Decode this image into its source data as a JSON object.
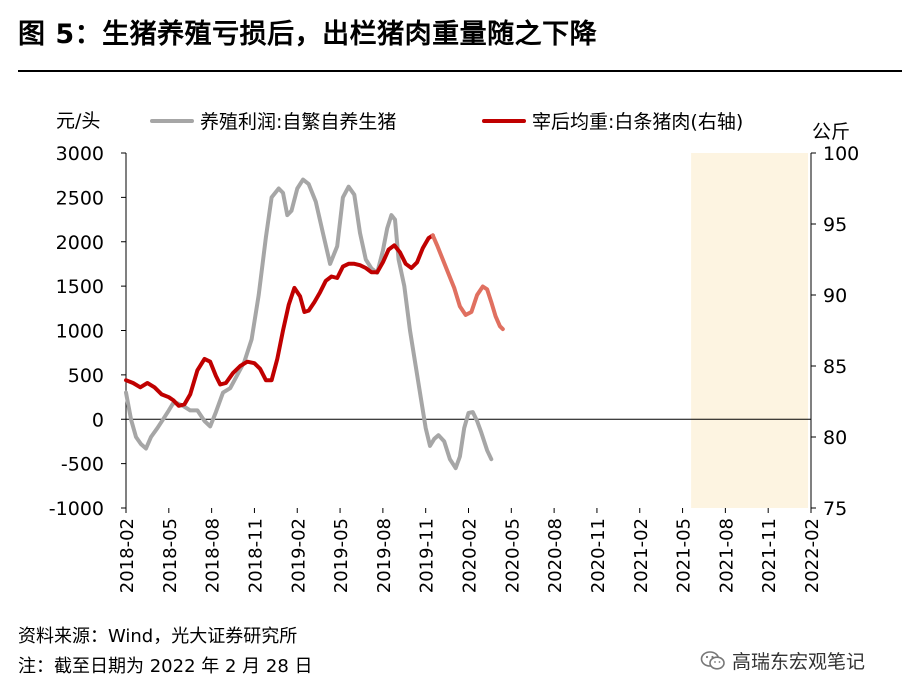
{
  "title": "图 5：生猪养殖亏损后，出栏猪肉重量随之下降",
  "source": "资料来源：Wind，光大证券研究所",
  "note": "注：截至日期为 2022 年 2 月 28 日",
  "watermark": "高瑞东宏观笔记",
  "colors": {
    "profit": "#a6a6a6",
    "weight": "#c00000",
    "weight_recent": "#e07060",
    "shade": "#fdf4e1"
  },
  "chart_data": {
    "type": "line",
    "left_unit": "元/头",
    "right_unit": "公斤",
    "left_ylim": [
      -1000,
      3000
    ],
    "left_ticks": [
      3000,
      2500,
      2000,
      1500,
      1000,
      500,
      0,
      -500,
      -1000
    ],
    "right_ylim": [
      75,
      100
    ],
    "right_ticks": [
      100,
      95,
      90,
      85,
      80,
      75
    ],
    "x_ticks": [
      "2018-02",
      "2018-05",
      "2018-08",
      "2018-11",
      "2019-02",
      "2019-05",
      "2019-08",
      "2019-11",
      "2020-02",
      "2020-05",
      "2020-08",
      "2020-11",
      "2021-02",
      "2021-05",
      "2021-08",
      "2021-11",
      "2022-02"
    ],
    "shaded_from": "2021-06",
    "shaded_to": "2022-02",
    "series": [
      {
        "name": "养殖利润:自繁自养生猪",
        "axis": "left",
        "points": [
          [
            0,
            300
          ],
          [
            0.35,
            0
          ],
          [
            0.7,
            -200
          ],
          [
            1.05,
            -280
          ],
          [
            1.4,
            -330
          ],
          [
            1.75,
            -200
          ],
          [
            2.2,
            -100
          ],
          [
            2.6,
            0
          ],
          [
            3.0,
            100
          ],
          [
            3.3,
            180
          ],
          [
            3.6,
            180
          ],
          [
            4.0,
            150
          ],
          [
            4.5,
            100
          ],
          [
            5.0,
            100
          ],
          [
            5.5,
            -20
          ],
          [
            5.9,
            -80
          ],
          [
            6.3,
            80
          ],
          [
            6.8,
            300
          ],
          [
            7.3,
            350
          ],
          [
            7.8,
            500
          ],
          [
            8.3,
            650
          ],
          [
            8.8,
            900
          ],
          [
            9.3,
            1400
          ],
          [
            9.8,
            2050
          ],
          [
            10.2,
            2500
          ],
          [
            10.7,
            2600
          ],
          [
            11.0,
            2550
          ],
          [
            11.3,
            2300
          ],
          [
            11.6,
            2350
          ],
          [
            12.0,
            2600
          ],
          [
            12.4,
            2700
          ],
          [
            12.8,
            2650
          ],
          [
            13.3,
            2450
          ],
          [
            13.8,
            2100
          ],
          [
            14.3,
            1750
          ],
          [
            14.8,
            1950
          ],
          [
            15.2,
            2500
          ],
          [
            15.6,
            2620
          ],
          [
            16.0,
            2530
          ],
          [
            16.4,
            2100
          ],
          [
            16.8,
            1800
          ],
          [
            17.2,
            1700
          ],
          [
            17.6,
            1650
          ],
          [
            18.0,
            1900
          ],
          [
            18.3,
            2150
          ],
          [
            18.6,
            2300
          ],
          [
            18.85,
            2250
          ],
          [
            19.1,
            1800
          ],
          [
            19.5,
            1500
          ],
          [
            19.9,
            1000
          ],
          [
            20.3,
            600
          ],
          [
            20.7,
            200
          ],
          [
            21.0,
            -100
          ],
          [
            21.3,
            -300
          ],
          [
            21.6,
            -220
          ],
          [
            21.9,
            -180
          ],
          [
            22.3,
            -250
          ],
          [
            22.7,
            -450
          ],
          [
            23.1,
            -550
          ],
          [
            23.4,
            -420
          ],
          [
            23.7,
            -100
          ],
          [
            24.0,
            70
          ],
          [
            24.3,
            80
          ],
          [
            24.6,
            -20
          ],
          [
            24.9,
            -150
          ],
          [
            25.3,
            -350
          ],
          [
            25.6,
            -450
          ]
        ]
      },
      {
        "name": "宰后均重:白条猪肉(右轴)",
        "axis": "right",
        "points": [
          [
            0,
            84.0
          ],
          [
            0.5,
            83.8
          ],
          [
            1.0,
            83.5
          ],
          [
            1.5,
            83.8
          ],
          [
            2.0,
            83.5
          ],
          [
            2.5,
            83.0
          ],
          [
            3.0,
            82.8
          ],
          [
            3.3,
            82.6
          ],
          [
            3.7,
            82.2
          ],
          [
            4.1,
            82.3
          ],
          [
            4.5,
            83.0
          ],
          [
            5.0,
            84.7
          ],
          [
            5.5,
            85.5
          ],
          [
            5.9,
            85.3
          ],
          [
            6.3,
            84.3
          ],
          [
            6.6,
            83.7
          ],
          [
            7.0,
            83.8
          ],
          [
            7.5,
            84.5
          ],
          [
            8.0,
            85.0
          ],
          [
            8.5,
            85.3
          ],
          [
            9.0,
            85.2
          ],
          [
            9.4,
            84.8
          ],
          [
            9.8,
            84.0
          ],
          [
            10.2,
            84.0
          ],
          [
            10.6,
            85.5
          ],
          [
            11.0,
            87.5
          ],
          [
            11.4,
            89.3
          ],
          [
            11.8,
            90.5
          ],
          [
            12.2,
            89.9
          ],
          [
            12.5,
            88.8
          ],
          [
            12.8,
            88.9
          ],
          [
            13.2,
            89.5
          ],
          [
            13.6,
            90.2
          ],
          [
            14.0,
            91.0
          ],
          [
            14.4,
            91.3
          ],
          [
            14.8,
            91.2
          ],
          [
            15.2,
            92.0
          ],
          [
            15.6,
            92.2
          ],
          [
            16.0,
            92.2
          ],
          [
            16.4,
            92.1
          ],
          [
            16.8,
            91.9
          ],
          [
            17.2,
            91.6
          ],
          [
            17.6,
            91.6
          ],
          [
            18.0,
            92.3
          ],
          [
            18.4,
            93.2
          ],
          [
            18.8,
            93.5
          ],
          [
            19.2,
            93.0
          ],
          [
            19.6,
            92.2
          ],
          [
            20.0,
            91.9
          ],
          [
            20.4,
            92.3
          ],
          [
            20.8,
            93.3
          ],
          [
            21.2,
            94.0
          ],
          [
            21.5,
            94.2
          ],
          [
            21.8,
            93.5
          ],
          [
            22.2,
            92.5
          ],
          [
            22.6,
            91.5
          ],
          [
            23.0,
            90.5
          ],
          [
            23.4,
            89.2
          ],
          [
            23.8,
            88.6
          ],
          [
            24.2,
            88.8
          ],
          [
            24.6,
            90.0
          ],
          [
            25.0,
            90.6
          ],
          [
            25.3,
            90.4
          ],
          [
            25.6,
            89.5
          ],
          [
            25.9,
            88.5
          ],
          [
            26.2,
            87.8
          ],
          [
            26.4,
            87.6
          ]
        ]
      }
    ]
  }
}
